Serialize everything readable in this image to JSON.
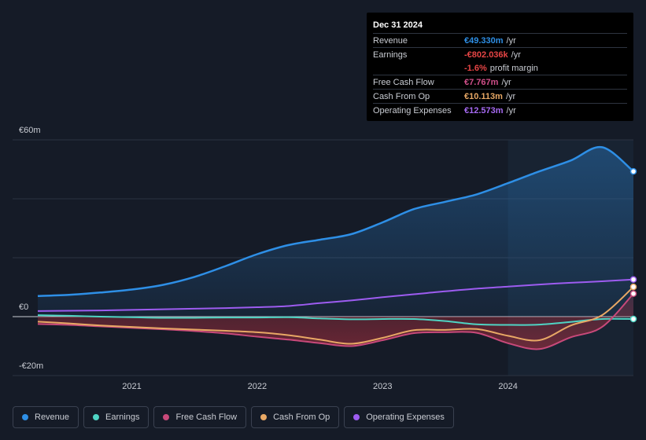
{
  "chart_data": {
    "type": "area",
    "currency_unit": "€m",
    "y_ticks": [
      {
        "value": 60,
        "label": "€60m"
      },
      {
        "value": 0,
        "label": "€0"
      },
      {
        "value": -20,
        "label": "-€20m"
      }
    ],
    "ylim": [
      -20,
      60
    ],
    "xlim": [
      2020.25,
      2025.0
    ],
    "x_ticks": [
      {
        "value": 2021,
        "label": "2021"
      },
      {
        "value": 2022,
        "label": "2022"
      },
      {
        "value": 2023,
        "label": "2023"
      },
      {
        "value": 2024,
        "label": "2024"
      }
    ],
    "forecast_start": 2024.0,
    "series": [
      {
        "key": "revenue",
        "name": "Revenue",
        "color": "#2e8fe6",
        "x": [
          2020.25,
          2020.5,
          2020.75,
          2021.0,
          2021.25,
          2021.5,
          2021.75,
          2022.0,
          2022.25,
          2022.5,
          2022.75,
          2023.0,
          2023.25,
          2023.5,
          2023.75,
          2024.0,
          2024.25,
          2024.5,
          2024.75,
          2025.0
        ],
        "values": [
          7.0,
          7.4,
          8.2,
          9.2,
          10.8,
          13.5,
          17.2,
          21.2,
          24.3,
          26.1,
          28.0,
          32.0,
          36.5,
          39.0,
          41.5,
          45.3,
          49.3,
          53.0,
          57.5,
          49.3
        ]
      },
      {
        "key": "earnings",
        "name": "Earnings",
        "color": "#4fd4c4",
        "x": [
          2020.25,
          2020.5,
          2020.75,
          2021.0,
          2021.25,
          2021.5,
          2021.75,
          2022.0,
          2022.25,
          2022.5,
          2022.75,
          2023.0,
          2023.25,
          2023.5,
          2023.75,
          2024.0,
          2024.25,
          2024.5,
          2024.75,
          2025.0
        ],
        "values": [
          0.5,
          0.3,
          0.0,
          -0.2,
          -0.4,
          -0.4,
          -0.3,
          -0.3,
          -0.2,
          -0.6,
          -0.9,
          -0.8,
          -0.8,
          -1.5,
          -2.6,
          -2.8,
          -2.7,
          -1.8,
          -0.8,
          -0.8
        ]
      },
      {
        "key": "free_cash_flow",
        "name": "Free Cash Flow",
        "color": "#c8497a",
        "x": [
          2020.25,
          2020.5,
          2020.75,
          2021.0,
          2021.25,
          2021.5,
          2021.75,
          2022.0,
          2022.25,
          2022.5,
          2022.75,
          2023.0,
          2023.25,
          2023.5,
          2023.75,
          2024.0,
          2024.25,
          2024.5,
          2024.75,
          2025.0
        ],
        "values": [
          -2.5,
          -2.8,
          -3.3,
          -3.8,
          -4.3,
          -4.9,
          -5.7,
          -6.8,
          -7.8,
          -9.0,
          -10.0,
          -8.0,
          -5.6,
          -5.3,
          -5.5,
          -9.0,
          -11.0,
          -7.0,
          -3.5,
          7.8
        ]
      },
      {
        "key": "cash_from_op",
        "name": "Cash From Op",
        "color": "#e8a865",
        "x": [
          2020.25,
          2020.5,
          2020.75,
          2021.0,
          2021.25,
          2021.5,
          2021.75,
          2022.0,
          2022.25,
          2022.5,
          2022.75,
          2023.0,
          2023.25,
          2023.5,
          2023.75,
          2024.0,
          2024.25,
          2024.5,
          2024.75,
          2025.0
        ],
        "values": [
          -1.7,
          -2.3,
          -3.0,
          -3.5,
          -4.0,
          -4.4,
          -4.8,
          -5.3,
          -6.3,
          -7.8,
          -9.2,
          -7.2,
          -4.6,
          -4.5,
          -4.2,
          -6.5,
          -8.0,
          -3.0,
          0.5,
          10.1
        ]
      },
      {
        "key": "operating_expenses",
        "name": "Operating Expenses",
        "color": "#9d5cf0",
        "x": [
          2020.25,
          2020.5,
          2020.75,
          2021.0,
          2021.25,
          2021.5,
          2021.75,
          2022.0,
          2022.25,
          2022.5,
          2022.75,
          2023.0,
          2023.25,
          2023.5,
          2023.75,
          2024.0,
          2024.25,
          2024.5,
          2024.75,
          2025.0
        ],
        "values": [
          1.9,
          2.0,
          2.1,
          2.3,
          2.5,
          2.7,
          2.9,
          3.2,
          3.6,
          4.6,
          5.5,
          6.6,
          7.6,
          8.6,
          9.5,
          10.2,
          10.9,
          11.5,
          12.0,
          12.6
        ]
      }
    ]
  },
  "tooltip": {
    "date": "Dec 31 2024",
    "rows": [
      {
        "label": "Revenue",
        "value": "€49.330m",
        "unit": "/yr",
        "color": "#2e8fe6"
      },
      {
        "label": "Earnings",
        "value": "-€802.036k",
        "unit": "/yr",
        "color": "#e64545"
      },
      {
        "label": "",
        "value": "-1.6%",
        "unit": "profit margin",
        "color": "#e64545"
      },
      {
        "label": "Free Cash Flow",
        "value": "€7.767m",
        "unit": "/yr",
        "color": "#d04f8a"
      },
      {
        "label": "Cash From Op",
        "value": "€10.113m",
        "unit": "/yr",
        "color": "#e8a865"
      },
      {
        "label": "Operating Expenses",
        "value": "€12.573m",
        "unit": "/yr",
        "color": "#a66af2"
      }
    ]
  },
  "legend": [
    {
      "label": "Revenue",
      "color": "#2e8fe6"
    },
    {
      "label": "Earnings",
      "color": "#4fd4c4"
    },
    {
      "label": "Free Cash Flow",
      "color": "#c8497a"
    },
    {
      "label": "Cash From Op",
      "color": "#e8a865"
    },
    {
      "label": "Operating Expenses",
      "color": "#9d5cf0"
    }
  ]
}
